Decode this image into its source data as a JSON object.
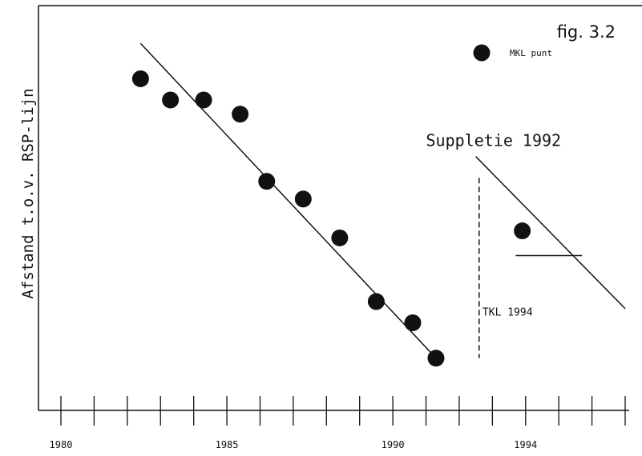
{
  "chart_data": {
    "type": "scatter",
    "figure_label": "fig. 3.2",
    "title": "",
    "xlabel": "",
    "ylabel": "Afstand t.o.v. RSP-lijn",
    "xlim": [
      1980,
      1997.1
    ],
    "ylim": [
      0,
      100
    ],
    "x_ticks": [
      1980,
      1981,
      1982,
      1983,
      1984,
      1985,
      1986,
      1987,
      1988,
      1989,
      1990,
      1991,
      1992,
      1993,
      1994,
      1995,
      1996,
      1997
    ],
    "x_tick_labels": [
      {
        "x": 1980,
        "label": "1980"
      },
      {
        "x": 1985,
        "label": "1985"
      },
      {
        "x": 1990,
        "label": "1990"
      },
      {
        "x": 1994,
        "label": "1994"
      }
    ],
    "legend": {
      "label": "MKL punt",
      "position": "top-right"
    },
    "series": [
      {
        "name": "MKL punt",
        "points": [
          {
            "x": 1982.4,
            "y": 87
          },
          {
            "x": 1983.3,
            "y": 81
          },
          {
            "x": 1984.3,
            "y": 81
          },
          {
            "x": 1985.4,
            "y": 77
          },
          {
            "x": 1986.2,
            "y": 58
          },
          {
            "x": 1987.3,
            "y": 53
          },
          {
            "x": 1988.4,
            "y": 42
          },
          {
            "x": 1989.5,
            "y": 24
          },
          {
            "x": 1990.6,
            "y": 18
          },
          {
            "x": 1991.3,
            "y": 8
          },
          {
            "x": 1993.9,
            "y": 44
          }
        ]
      }
    ],
    "trend_lines": [
      {
        "from": {
          "x": 1982.4,
          "y": 97
        },
        "to": {
          "x": 1991.3,
          "y": 8
        }
      },
      {
        "from": {
          "x": 1992.5,
          "y": 65
        },
        "to": {
          "x": 1997.0,
          "y": 22
        }
      }
    ],
    "reference_lines": [
      {
        "label": "TKL 1994",
        "y": 37,
        "x_from": 1993.7,
        "x_to": 1995.7
      }
    ],
    "vertical_markers": [
      {
        "x": 1992.6,
        "y_from": 59,
        "y_to": 8,
        "style": "dashed"
      }
    ],
    "annotations": [
      {
        "text": "Suppletie 1992",
        "x": 1991.0,
        "y": 68
      },
      {
        "text": "TKL 1994",
        "x": 1992.7,
        "y": 20
      }
    ]
  }
}
